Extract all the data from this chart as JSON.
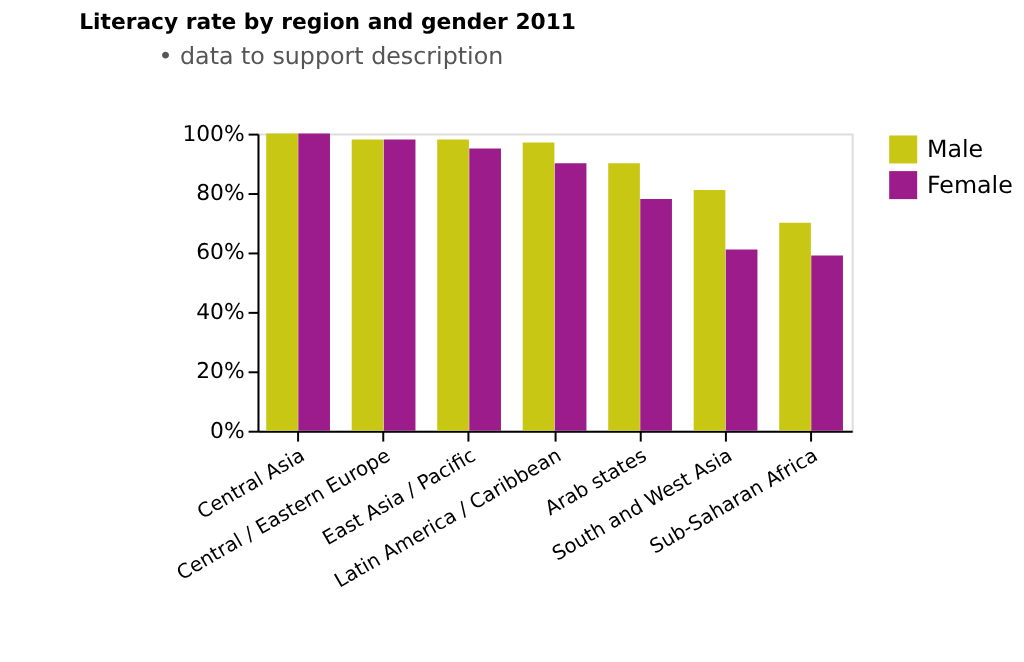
{
  "chart_data": {
    "type": "bar",
    "title": "Literacy rate by region and gender 2011",
    "annotations": [
      "• data to support description"
    ],
    "categories": [
      "Central Asia",
      "Central / Eastern Europe",
      "East Asia / Pacific",
      "Latin America / Caribbean",
      "Arab states",
      "South and West Asia",
      "Sub-Saharan Africa"
    ],
    "series": [
      {
        "name": "Male",
        "color": "#c8c814",
        "values": [
          100,
          98,
          98,
          97,
          90,
          81,
          70
        ]
      },
      {
        "name": "Female",
        "color": "#9c1c8c",
        "values": [
          100,
          98,
          95,
          90,
          78,
          61,
          59
        ]
      }
    ],
    "ylim": [
      0,
      100
    ],
    "yticks": [
      {
        "value": 0,
        "label": "0%"
      },
      {
        "value": 20,
        "label": "20%"
      },
      {
        "value": 40,
        "label": "40%"
      },
      {
        "value": 60,
        "label": "60%"
      },
      {
        "value": 80,
        "label": "80%"
      },
      {
        "value": 100,
        "label": "100%"
      }
    ],
    "legend": "right",
    "grid": false
  }
}
